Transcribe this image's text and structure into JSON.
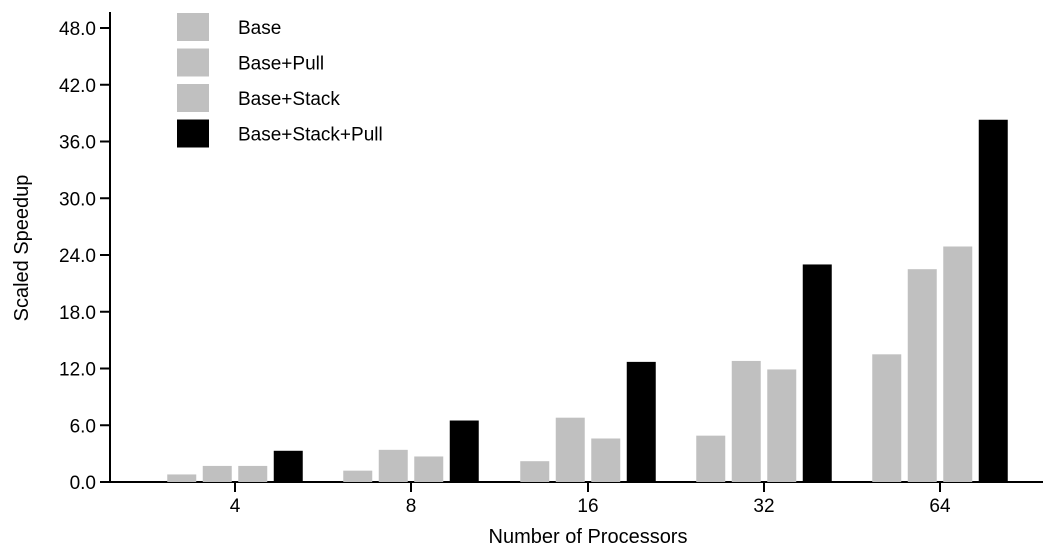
{
  "chart_data": {
    "type": "bar",
    "xlabel": "Number of Processors",
    "ylabel": "Scaled Speedup",
    "categories": [
      "4",
      "8",
      "16",
      "32",
      "64"
    ],
    "ylim": [
      0,
      48
    ],
    "yticks": [
      "0.0",
      "6.0",
      "12.0",
      "18.0",
      "24.0",
      "30.0",
      "36.0",
      "42.0",
      "48.0"
    ],
    "legend_position": "top-left",
    "grid": false,
    "series": [
      {
        "name": "Base",
        "color": "#c0c0c0",
        "values": [
          0.8,
          1.2,
          2.2,
          4.9,
          13.5
        ]
      },
      {
        "name": "Base+Pull",
        "color": "#c0c0c0",
        "values": [
          1.7,
          3.4,
          6.8,
          12.8,
          22.5
        ]
      },
      {
        "name": "Base+Stack",
        "color": "#c0c0c0",
        "values": [
          1.7,
          2.7,
          4.6,
          11.9,
          24.9
        ]
      },
      {
        "name": "Base+Stack+Pull",
        "color": "#000000",
        "values": [
          3.3,
          6.5,
          12.7,
          23.0,
          38.3
        ]
      }
    ]
  }
}
